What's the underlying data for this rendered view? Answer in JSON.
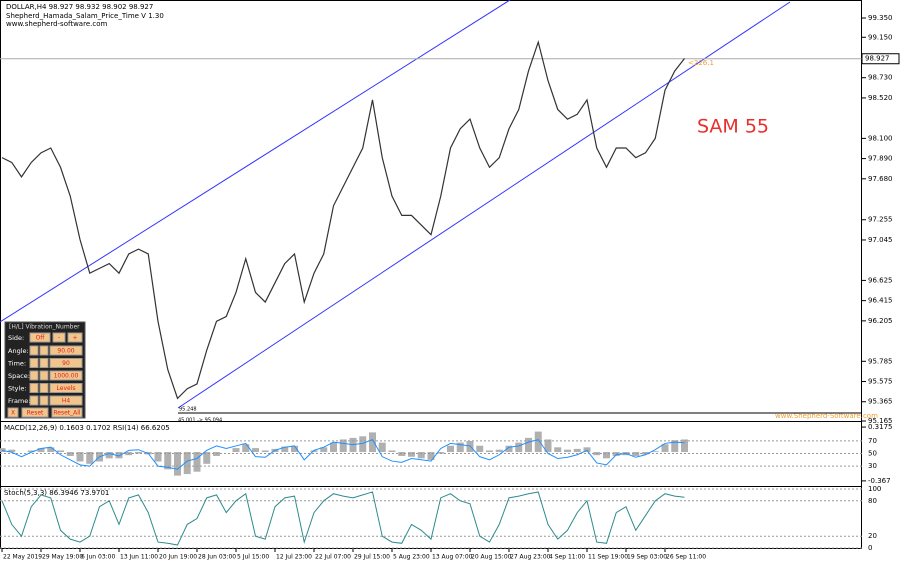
{
  "header": {
    "symbol_line": "DOLLAR,H4  98.927 98.932 98.902 98.927",
    "indicator_name": "Shepherd_Hamada_Salam_Price_Time V 1.30",
    "website": "www.shepherd-software.com"
  },
  "chart_data": {
    "type": "line",
    "color": "#333333",
    "categories": [
      "22 May 2019",
      null,
      null,
      null,
      "29 May 19:00",
      null,
      null,
      null,
      "6 Jun 03:00",
      null,
      null,
      null,
      "13 Jun 11:00",
      null,
      null,
      null,
      "20 Jun 19:00",
      null,
      null,
      null,
      "28 Jun 03:00",
      null,
      null,
      null,
      "5 Jul 15:00",
      null,
      null,
      null,
      "12 Jul 23:00",
      null,
      null,
      null,
      "22 Jul 07:00",
      null,
      null,
      null,
      "29 Jul 15:00",
      null,
      null,
      null,
      "5 Aug 23:00",
      null,
      null,
      null,
      "13 Aug 07:00",
      null,
      null,
      null,
      "20 Aug 15:00",
      null,
      null,
      null,
      "27 Aug 23:00",
      null,
      null,
      null,
      "4 Sep 11:00",
      null,
      null,
      null,
      "11 Sep 19:00",
      null,
      null,
      null,
      "19 Sep 03:00",
      null,
      null,
      null,
      "26 Sep 11:00",
      null,
      null
    ],
    "values": [
      97.9,
      97.85,
      97.7,
      97.85,
      97.95,
      98.0,
      97.8,
      97.5,
      97.05,
      96.7,
      96.75,
      96.8,
      96.7,
      96.9,
      96.95,
      96.9,
      96.2,
      95.7,
      95.4,
      95.5,
      95.55,
      95.9,
      96.2,
      96.25,
      96.5,
      96.85,
      96.5,
      96.4,
      96.6,
      96.8,
      96.9,
      96.4,
      96.7,
      96.9,
      97.4,
      97.6,
      97.8,
      98.0,
      98.5,
      97.9,
      97.5,
      97.3,
      97.3,
      97.2,
      97.1,
      97.5,
      98.0,
      98.2,
      98.3,
      98.0,
      97.8,
      97.9,
      98.2,
      98.4,
      98.8,
      99.1,
      98.7,
      98.4,
      98.3,
      98.35,
      98.5,
      98.0,
      97.8,
      98.0,
      98.0,
      97.9,
      97.95,
      98.1,
      98.6,
      98.8,
      98.93
    ],
    "ylim": [
      95.165,
      99.537
    ],
    "yticks": [
      {
        "value": 99.35,
        "label": "99.350"
      },
      {
        "value": 99.15,
        "label": "99.150"
      },
      {
        "value": 98.73,
        "label": "98.730"
      },
      {
        "value": 98.52,
        "label": "98.520"
      },
      {
        "value": 98.1,
        "label": "98.100"
      },
      {
        "value": 97.89,
        "label": "97.890"
      },
      {
        "value": 97.68,
        "label": "97.680"
      },
      97.255,
      97.045,
      96.625,
      96.415,
      96.205,
      95.785,
      95.575,
      95.365,
      95.165
    ],
    "current_price": 98.927,
    "low_level": 95.248,
    "low_note": "45.001 -> 95.094",
    "arrow_note": "<226.1",
    "annotation": "SAM 55",
    "watermark": "www.Shepherd-Software.com"
  },
  "macd": {
    "title": "MACD(12,26,9) 0.1603 0.1702  RSI(14) 66.6205",
    "color": "#b0b0b0",
    "values": [
      0.05,
      0.03,
      0,
      0.02,
      0.05,
      0.06,
      0.02,
      -0.05,
      -0.12,
      -0.15,
      -0.12,
      -0.08,
      -0.08,
      -0.04,
      -0.02,
      -0.03,
      -0.12,
      -0.22,
      -0.3,
      -0.28,
      -0.25,
      -0.15,
      -0.05,
      0,
      0.05,
      0.1,
      0.05,
      0.02,
      0.04,
      0.07,
      0.08,
      0,
      0.02,
      0.06,
      0.12,
      0.16,
      0.18,
      0.2,
      0.25,
      0.12,
      0.02,
      -0.05,
      -0.06,
      -0.08,
      -0.1,
      -0.02,
      0.08,
      0.12,
      0.14,
      0.08,
      0.02,
      0.03,
      0.08,
      0.12,
      0.18,
      0.26,
      0.16,
      0.06,
      0.03,
      0.04,
      0.06,
      -0.04,
      -0.08,
      -0.05,
      -0.04,
      -0.05,
      -0.03,
      0.01,
      0.1,
      0.15,
      0.16
    ],
    "ylim": [
      -0.432,
      0.382
    ],
    "yticks": [
      0.3175,
      -0.367
    ]
  },
  "rsi": {
    "color": "#1e90ff",
    "values": [
      55,
      52,
      45,
      52,
      58,
      60,
      48,
      40,
      32,
      30,
      45,
      50,
      46,
      55,
      56,
      50,
      30,
      28,
      25,
      38,
      42,
      55,
      62,
      58,
      62,
      66,
      45,
      44,
      55,
      60,
      62,
      40,
      55,
      60,
      68,
      66,
      64,
      66,
      72,
      45,
      38,
      36,
      42,
      40,
      38,
      58,
      66,
      64,
      62,
      45,
      40,
      48,
      60,
      62,
      68,
      72,
      50,
      42,
      44,
      48,
      55,
      35,
      32,
      48,
      50,
      44,
      48,
      56,
      66,
      68,
      67
    ],
    "ylim": [
      0,
      100
    ],
    "yticks": [
      70,
      50,
      30
    ]
  },
  "stoch": {
    "title": "Stoch(5,3,3) 86.3946 73.9701",
    "color": "#2e8b8b",
    "values": [
      80,
      40,
      20,
      70,
      90,
      85,
      30,
      15,
      10,
      20,
      70,
      80,
      40,
      85,
      90,
      60,
      10,
      8,
      5,
      40,
      50,
      85,
      90,
      60,
      80,
      92,
      20,
      15,
      70,
      85,
      88,
      10,
      60,
      80,
      92,
      88,
      85,
      90,
      95,
      20,
      10,
      8,
      40,
      30,
      15,
      85,
      92,
      80,
      75,
      20,
      10,
      40,
      85,
      88,
      92,
      95,
      40,
      15,
      30,
      60,
      80,
      10,
      8,
      60,
      70,
      30,
      55,
      80,
      92,
      88,
      86
    ],
    "ylim": [
      0,
      100
    ],
    "yticks": [
      100,
      80,
      20,
      0
    ]
  },
  "control_panel": {
    "title": "[H/L] Vibration_Number",
    "side": {
      "label": "Side:",
      "value": "Off",
      "minus": "-",
      "plus": "+"
    },
    "rows": [
      {
        "label": "Angle:",
        "value": "90.00"
      },
      {
        "label": "Time:",
        "value": "90"
      },
      {
        "label": "Space:",
        "value": "1000.00"
      },
      {
        "label": "Style:",
        "value": "Levels"
      },
      {
        "label": "Frame:",
        "value": "H4"
      }
    ],
    "buttons": [
      "X",
      "Reset",
      "Reset_All"
    ]
  }
}
